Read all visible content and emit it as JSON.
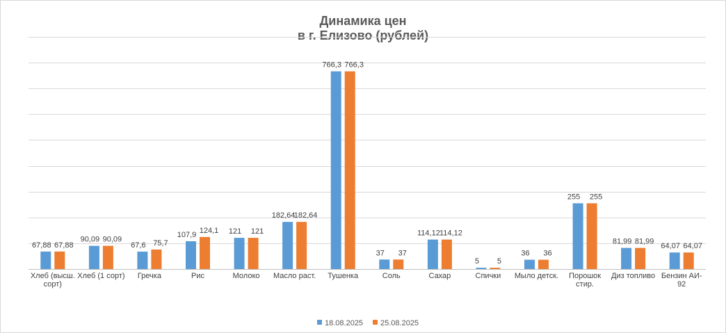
{
  "chart_data": {
    "type": "bar",
    "title": [
      "Динамика цен",
      "в г. Елизово (рублей)"
    ],
    "categories": [
      [
        "Хлеб (высш.",
        "сорт)"
      ],
      [
        "Хлеб (1 сорт)"
      ],
      [
        "Гречка"
      ],
      [
        "Рис"
      ],
      [
        "Молоко"
      ],
      [
        "Масло раст."
      ],
      [
        "Тушенка"
      ],
      [
        "Соль"
      ],
      [
        "Сахар"
      ],
      [
        "Спички"
      ],
      [
        "Мыло детск."
      ],
      [
        "Порошок",
        "стир."
      ],
      [
        "Диз топливо"
      ],
      [
        "Бензин АИ-",
        "92"
      ]
    ],
    "series": [
      {
        "name": "18.08.2025",
        "color": "#5b9bd5",
        "values": [
          67.88,
          90.09,
          67.6,
          107.9,
          121,
          182.64,
          766.3,
          37,
          114.12,
          5,
          36,
          255,
          81.99,
          64.07
        ],
        "labels": [
          "67,88",
          "90,09",
          "67,6",
          "107,9",
          "121",
          "182,64",
          "766,3",
          "37",
          "114,12",
          "5",
          "36",
          "255",
          "81,99",
          "64,07"
        ]
      },
      {
        "name": "25.08.2025",
        "color": "#ed7d31",
        "values": [
          67.88,
          90.09,
          75.7,
          124.1,
          121,
          182.64,
          766.3,
          37,
          114.12,
          5,
          36,
          255,
          81.99,
          64.07
        ],
        "labels": [
          "67,88",
          "90,09",
          "75,7",
          "124,1",
          "121",
          "182,64",
          "766,3",
          "37",
          "114,12",
          "5",
          "36",
          "255",
          "81,99",
          "64,07"
        ]
      }
    ],
    "ylim": [
      0,
      900
    ],
    "grid": true,
    "legend_position": "bottom"
  }
}
